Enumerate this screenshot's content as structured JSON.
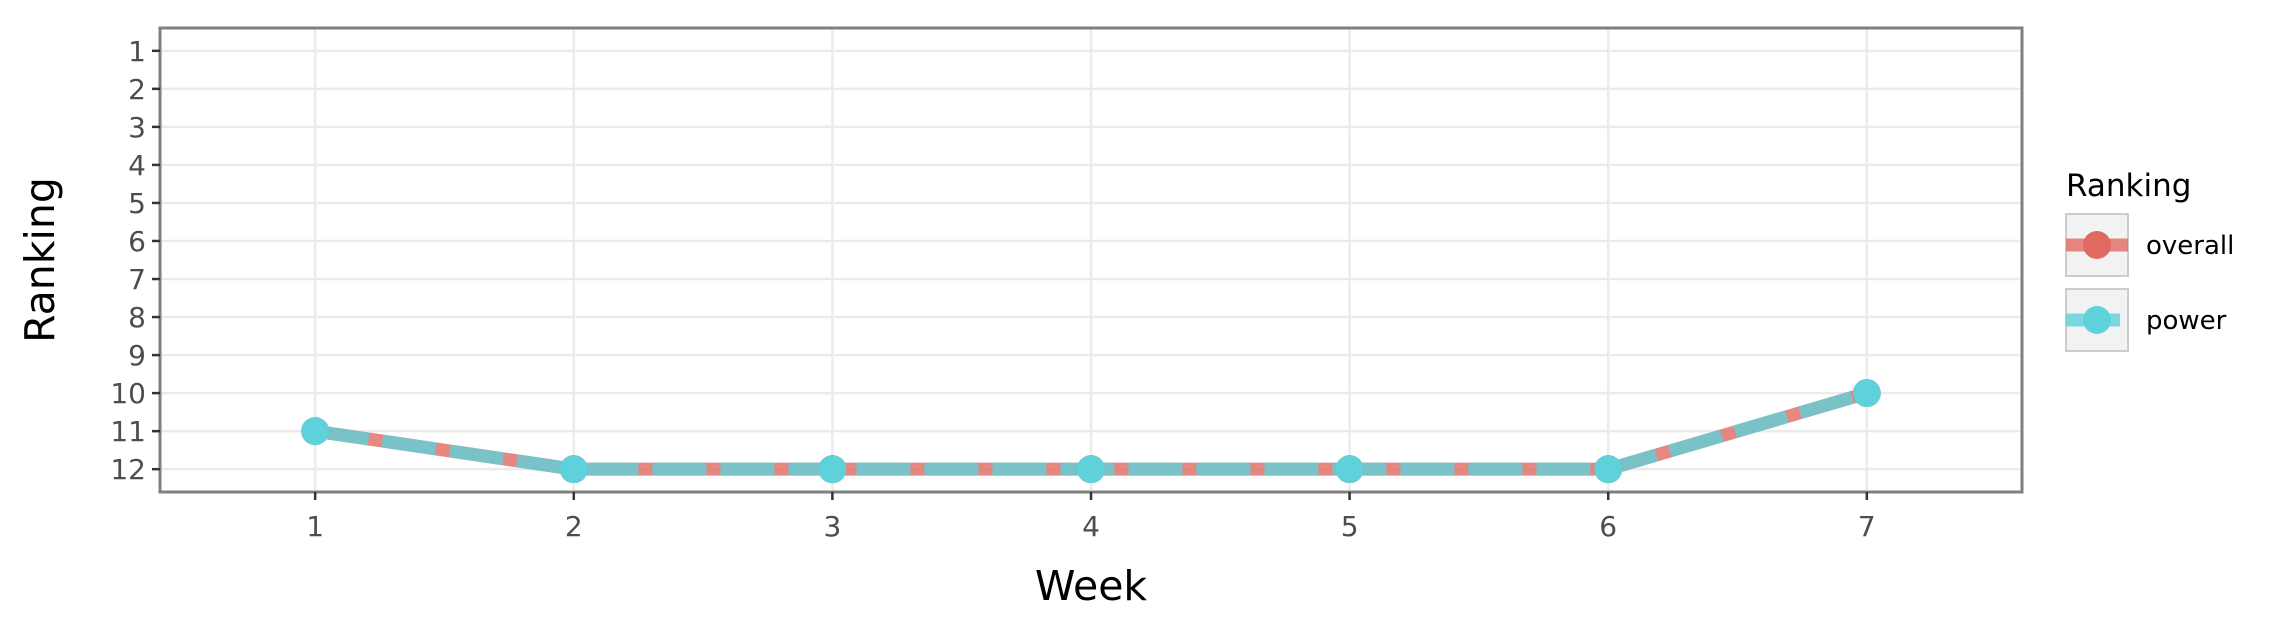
{
  "chart_data": {
    "type": "line",
    "xlabel": "Week",
    "ylabel": "Ranking",
    "x": [
      1,
      2,
      3,
      4,
      5,
      6,
      7
    ],
    "xlim": [
      0.4,
      7.6
    ],
    "ylim": [
      12.6,
      0.4
    ],
    "y_reversed": true,
    "x_ticks": [
      1,
      2,
      3,
      4,
      5,
      6,
      7
    ],
    "y_ticks": [
      1,
      2,
      3,
      4,
      5,
      6,
      7,
      8,
      9,
      10,
      11,
      12
    ],
    "grid": true,
    "legend": {
      "title": "Ranking",
      "position": "right"
    },
    "series": [
      {
        "name": "overall",
        "values": [
          11,
          12,
          12,
          12,
          12,
          12,
          10
        ],
        "color": "#E06A62",
        "line_style": "solid"
      },
      {
        "name": "power",
        "values": [
          11,
          12,
          12,
          12,
          12,
          12,
          10
        ],
        "color": "#5ED1DA",
        "line_style": "dashed"
      }
    ]
  }
}
